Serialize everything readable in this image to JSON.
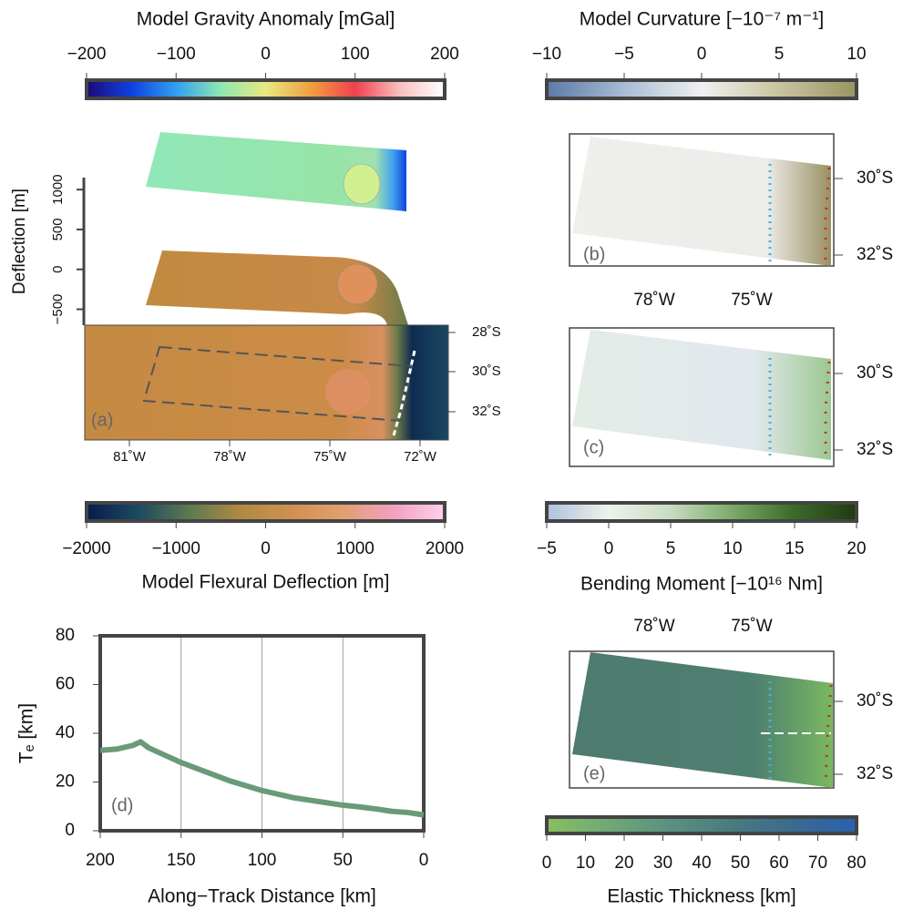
{
  "colorbars": [
    {
      "title": "Model Gravity Anomaly [mGal]",
      "ticks": [
        {
          "value": -200,
          "label": "−200"
        },
        {
          "value": -100,
          "label": "−100"
        },
        0,
        100,
        200
      ],
      "colors": [
        "#1a0a7a",
        "#1040e0",
        "#30a0f0",
        "#90e8b0",
        "#e8e880",
        "#f0a040",
        "#f04050",
        "#f8c0c0",
        "#ffffff"
      ]
    },
    {
      "title": "Model Curvature [−10⁻⁷ m⁻¹]",
      "ticks": [
        {
          "value": -10,
          "label": "−10"
        },
        {
          "value": -5,
          "label": "−5"
        },
        0,
        5,
        10
      ],
      "colors": [
        "#5a7aa8",
        "#a8bcd4",
        "#f0f0f0",
        "#c8c4a0",
        "#9a9460"
      ]
    },
    {
      "title": "Model Flexural Deflection [m]",
      "ticks": [
        {
          "value": -2000,
          "label": "−2000"
        },
        {
          "value": -1000,
          "label": "−1000"
        },
        0,
        1000,
        2000
      ],
      "colors": [
        "#0a1a50",
        "#1a4a60",
        "#5a7a50",
        "#b08a40",
        "#d09050",
        "#e0a070",
        "#f0a0c0",
        "#ffd0f0"
      ]
    },
    {
      "title": "Bending Moment [−10¹⁶ Nm]",
      "ticks": [
        {
          "value": -5,
          "label": "−5"
        },
        0,
        5,
        10,
        15,
        20
      ],
      "colors": [
        "#b0c0dc",
        "#eef2ee",
        "#c8dcc0",
        "#7aaa6a",
        "#3a6a2a",
        "#203a10"
      ]
    },
    {
      "title": "Elastic Thickness [km]",
      "ticks": [
        0,
        10,
        20,
        30,
        40,
        50,
        60,
        70,
        80
      ],
      "colors": [
        "#88c060",
        "#70a878",
        "#5a9080",
        "#4a7a80",
        "#3a6a90",
        "#2a60b0"
      ]
    }
  ],
  "panel_a": {
    "label": "(a)",
    "deflection_axis": {
      "label": "Deflection [m]",
      "lim": [
        -700,
        1150
      ],
      "ticks": [
        {
          "value": -500,
          "label": "−500"
        },
        0,
        500,
        1000
      ]
    },
    "lat_labels": [
      "28˚S",
      "30˚S",
      "32˚S"
    ],
    "lon_labels": [
      "81˚W",
      "78˚W",
      "75˚W",
      "72˚W"
    ]
  },
  "panel_b": {
    "label": "(b)",
    "lat_labels": [
      "30˚S",
      "32˚S"
    ]
  },
  "panel_c": {
    "label": "(c)",
    "lat_labels": [
      "30˚S",
      "32˚S"
    ],
    "lon_labels": [
      "78˚W",
      "75˚W"
    ]
  },
  "panel_e": {
    "label": "(e)",
    "lat_labels": [
      "30˚S",
      "32˚S"
    ],
    "lon_labels": [
      "78˚W",
      "75˚W"
    ]
  },
  "chart_data": {
    "type": "line",
    "annotation": "(d)",
    "x_label": "Along−Track Distance [km]",
    "y_label": "Tₑ [km]",
    "x": [
      200,
      190,
      180,
      175,
      170,
      160,
      150,
      140,
      130,
      120,
      110,
      100,
      90,
      80,
      70,
      60,
      50,
      40,
      30,
      20,
      10,
      0
    ],
    "values": [
      33,
      33.5,
      35,
      36.5,
      34,
      31,
      28,
      25.5,
      23,
      20.5,
      18.5,
      16.5,
      15,
      13.5,
      12.5,
      11.5,
      10.5,
      9.8,
      9,
      8,
      7.5,
      6.5
    ],
    "color": "#6a9a78",
    "xlim": [
      200,
      0
    ],
    "ylim": [
      0,
      80
    ],
    "xticks": [
      200,
      150,
      100,
      50,
      0
    ],
    "yticks": [
      0,
      20,
      40,
      60,
      80
    ],
    "grid": "x"
  }
}
